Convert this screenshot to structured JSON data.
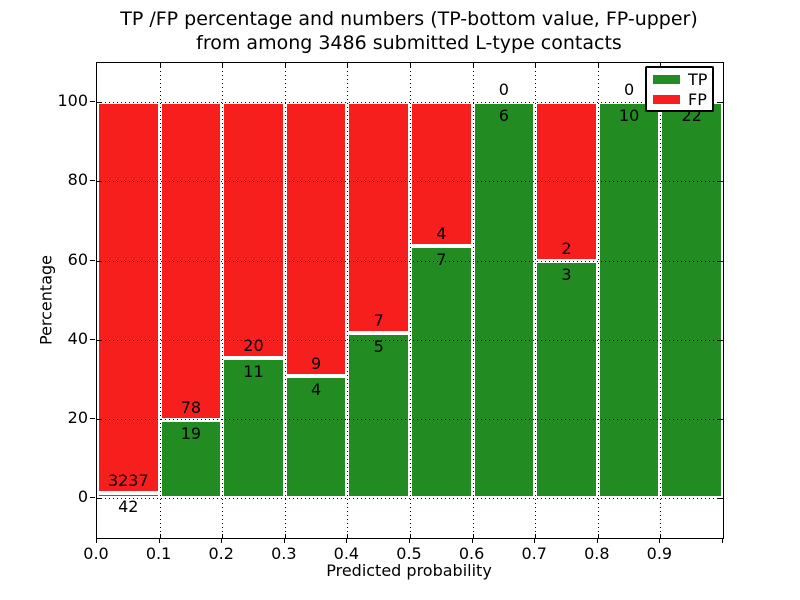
{
  "figure": {
    "title_line1": "TP /FP percentage and numbers (TP-bottom value, FP-upper)",
    "title_line2": "from among 3486 submitted L-type contacts",
    "xlabel": "Predicted probability",
    "ylabel": "Percentage"
  },
  "legend": {
    "position": "upper right",
    "items": [
      {
        "label": "TP",
        "color": "#228b22"
      },
      {
        "label": "FP",
        "color": "#f71e1e"
      }
    ]
  },
  "chart_data": {
    "type": "bar",
    "stacked": true,
    "normalized_to_percent": true,
    "title": "TP /FP percentage and numbers (TP-bottom value, FP-upper) from among 3486 submitted L-type contacts",
    "total_submitted_contacts": 3486,
    "xlabel": "Predicted probability",
    "ylabel": "Percentage",
    "xlim": [
      0.0,
      1.0
    ],
    "ylim": [
      -10,
      110
    ],
    "xticks": [
      "0.0",
      "0.1",
      "0.2",
      "0.3",
      "0.4",
      "0.5",
      "0.6",
      "0.7",
      "0.8",
      "0.9"
    ],
    "yticks": [
      0,
      20,
      40,
      60,
      80,
      100
    ],
    "grid": true,
    "legend_position": "upper right",
    "bins": [
      "0.0-0.1",
      "0.1-0.2",
      "0.2-0.3",
      "0.3-0.4",
      "0.4-0.5",
      "0.5-0.6",
      "0.6-0.7",
      "0.7-0.8",
      "0.8-0.9",
      "0.9-1.0"
    ],
    "series": [
      {
        "name": "TP",
        "color": "#228b22",
        "counts": [
          42,
          19,
          11,
          4,
          5,
          7,
          6,
          3,
          10,
          22
        ]
      },
      {
        "name": "FP",
        "color": "#f71e1e",
        "counts": [
          3237,
          78,
          20,
          9,
          7,
          4,
          0,
          2,
          0,
          0
        ]
      }
    ],
    "tp_percent": [
      1.28,
      19.59,
      35.48,
      30.77,
      41.67,
      63.64,
      100.0,
      60.0,
      100.0,
      100.0
    ]
  }
}
